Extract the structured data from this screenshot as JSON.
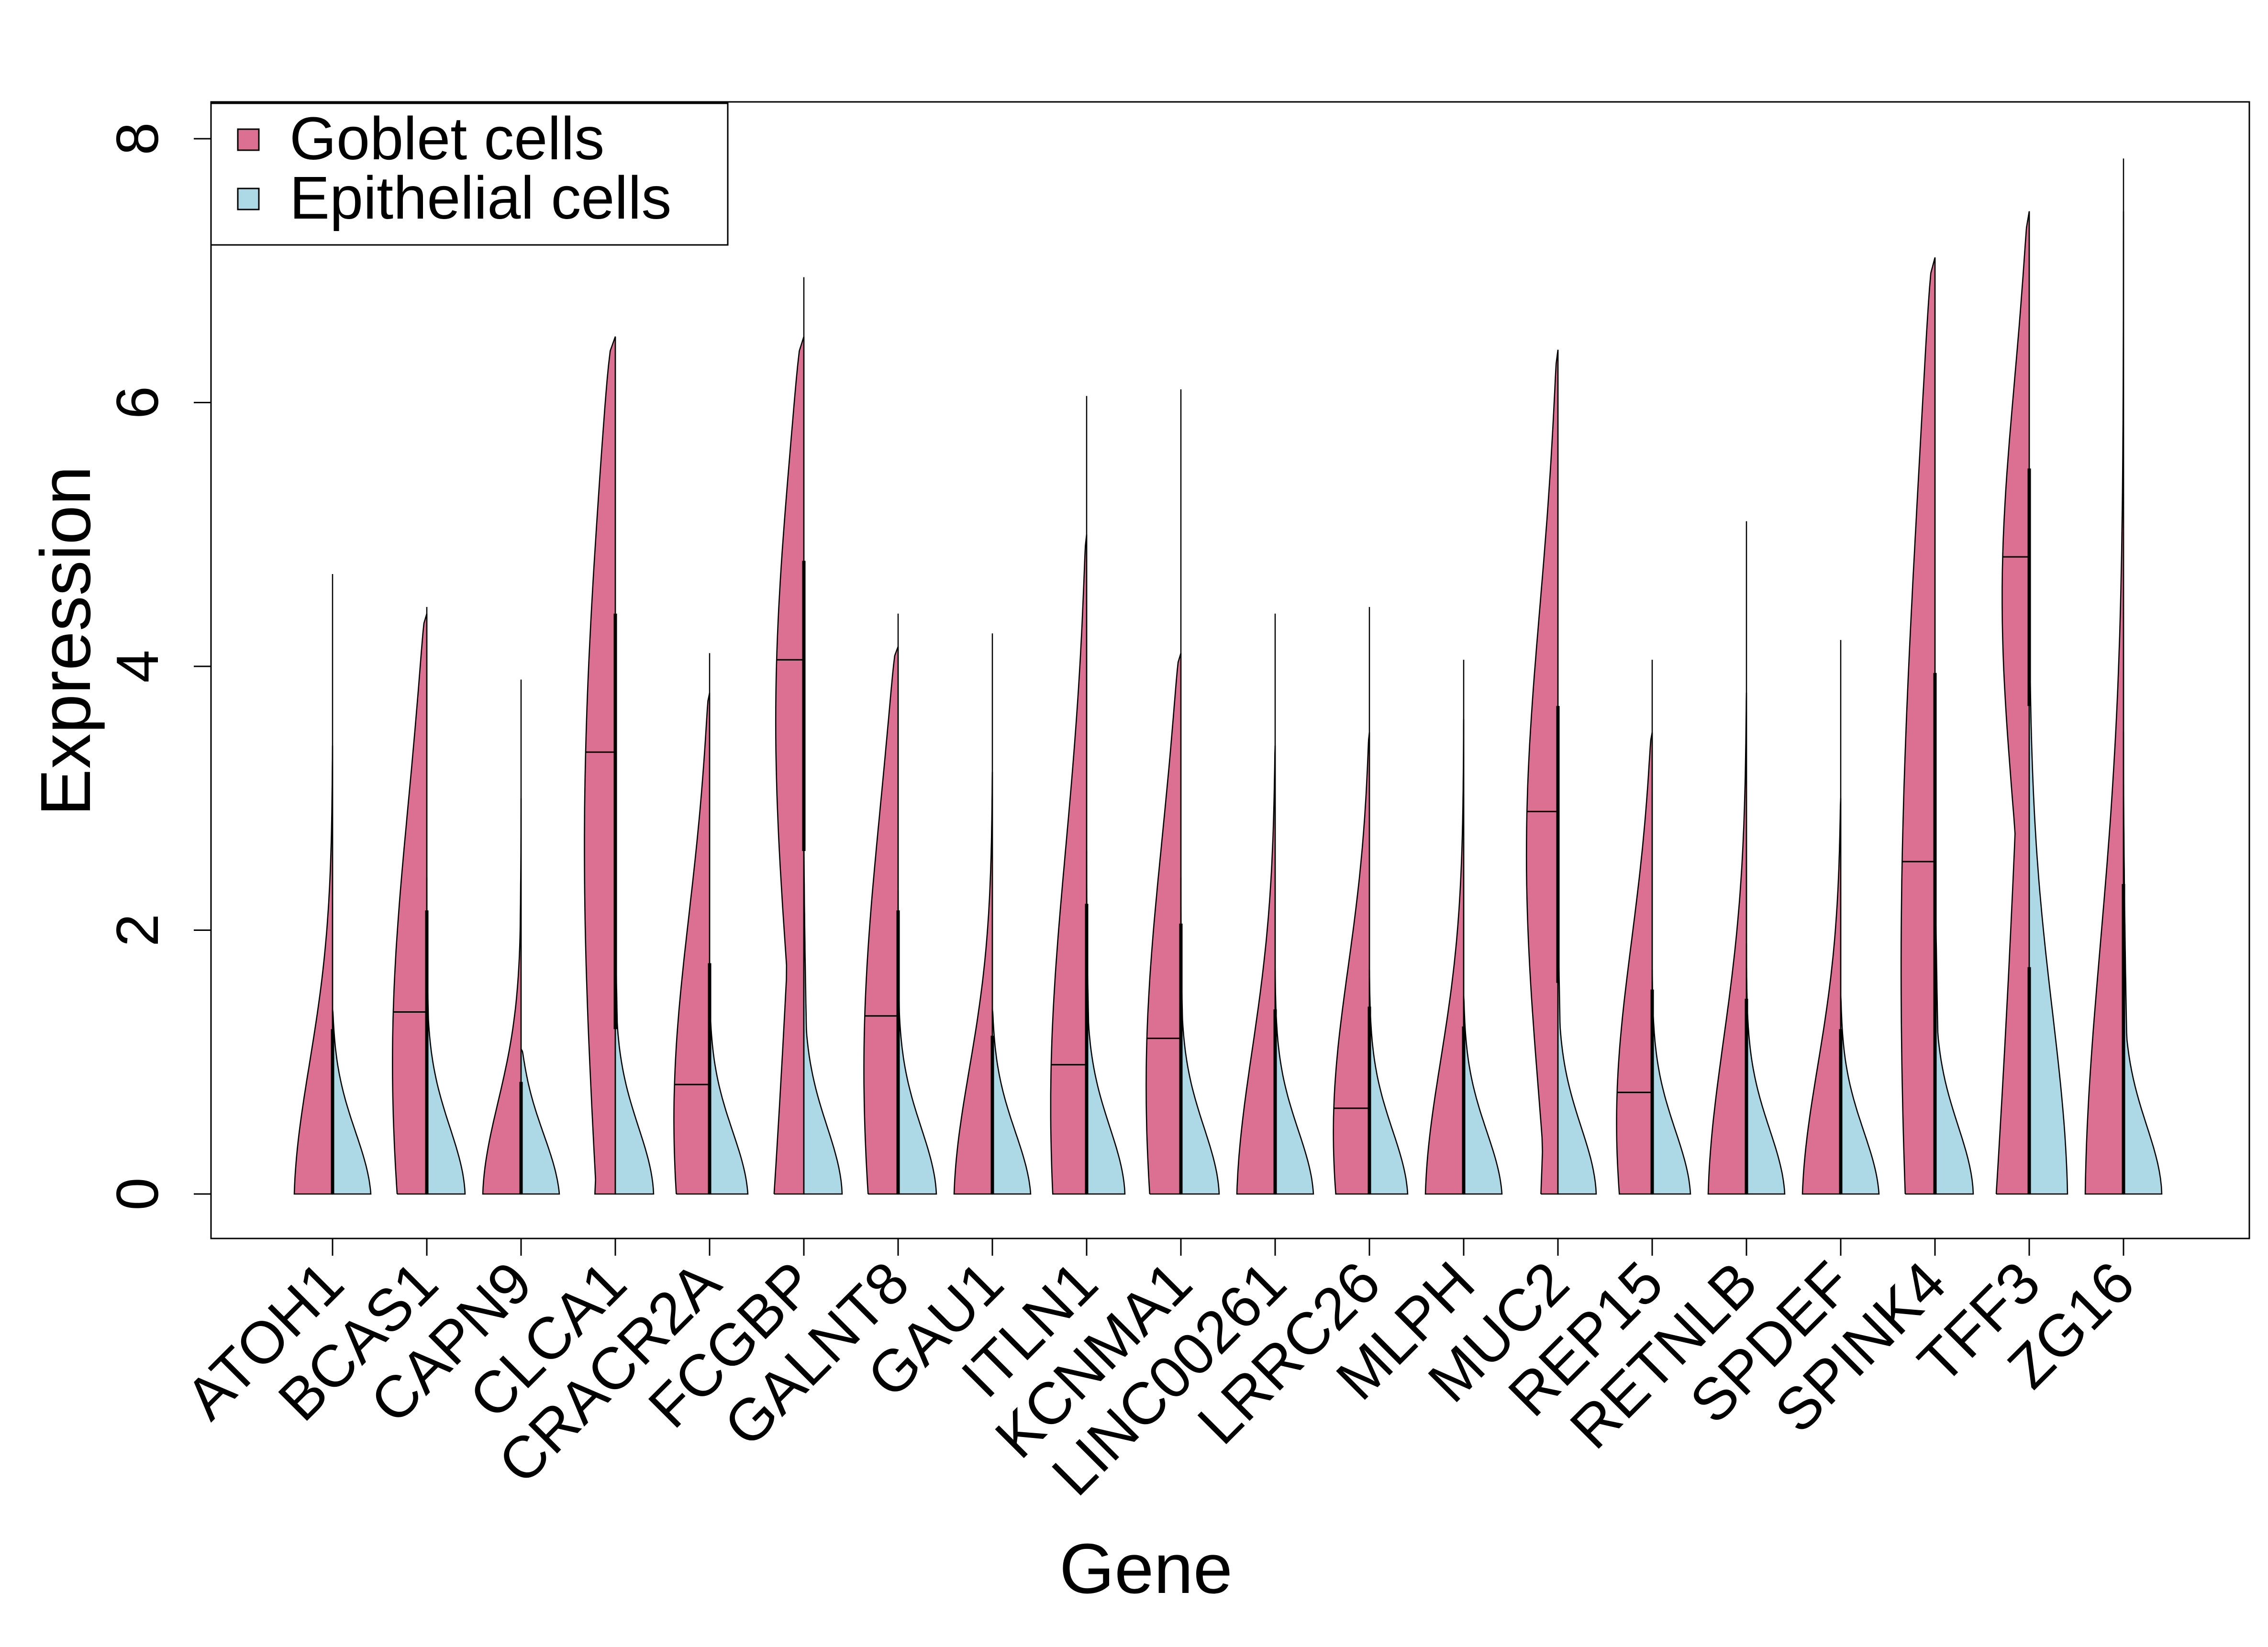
{
  "chart_data": {
    "type": "split-violin",
    "xlabel": "Gene",
    "ylabel": "Expression",
    "ylim": [
      -0.25,
      8.3
    ],
    "yticks": [
      0,
      2,
      4,
      6,
      8
    ],
    "legend": {
      "position": "top-left",
      "entries": [
        {
          "name": "Goblet cells",
          "color": "#DB7093"
        },
        {
          "name": "Epithelial cells",
          "color": "#ADD8E6"
        }
      ]
    },
    "genes": [
      {
        "gene": "ATOH1",
        "goblet": {
          "max": 3.4,
          "median": 0.0,
          "q1": 0.0,
          "q3": 1.25,
          "whisker": 4.7
        },
        "epithelial": {
          "max": 1.4,
          "median": 0.0,
          "q1": 0.0,
          "q3": 0.0
        }
      },
      {
        "gene": "BCAS1",
        "goblet": {
          "max": 4.4,
          "median": 1.38,
          "q1": 0.0,
          "q3": 2.15,
          "whisker": 4.45
        },
        "epithelial": {
          "max": 2.4,
          "median": 0.0,
          "q1": 0.0,
          "q3": 0.0
        }
      },
      {
        "gene": "CAPN9",
        "goblet": {
          "max": 3.0,
          "median": 0.0,
          "q1": 0.0,
          "q3": 0.85,
          "whisker": 3.9
        },
        "epithelial": {
          "max": 1.1,
          "median": 0.0,
          "q1": 0.0,
          "q3": 0.0
        }
      },
      {
        "gene": "CLCA1",
        "goblet": {
          "max": 6.5,
          "median": 3.35,
          "q1": 1.25,
          "q3": 4.4,
          "whisker": 6.5
        },
        "epithelial": {
          "max": 2.6,
          "median": 0.0,
          "q1": 0.0,
          "q3": 0.0
        }
      },
      {
        "gene": "CRACR2A",
        "goblet": {
          "max": 3.8,
          "median": 0.83,
          "q1": 0.0,
          "q3": 1.75,
          "whisker": 4.1
        },
        "epithelial": {
          "max": 1.5,
          "median": 0.0,
          "q1": 0.0,
          "q3": 0.0
        }
      },
      {
        "gene": "FCGBP",
        "goblet": {
          "max": 6.5,
          "median": 4.05,
          "q1": 2.6,
          "q3": 4.8,
          "whisker": 6.95
        },
        "epithelial": {
          "max": 3.0,
          "median": 0.0,
          "q1": 0.0,
          "q3": 0.0
        }
      },
      {
        "gene": "GALNT8",
        "goblet": {
          "max": 4.15,
          "median": 1.35,
          "q1": 0.0,
          "q3": 2.15,
          "whisker": 4.4
        },
        "epithelial": {
          "max": 2.3,
          "median": 0.0,
          "q1": 0.0,
          "q3": 0.0
        }
      },
      {
        "gene": "GAU1",
        "goblet": {
          "max": 3.2,
          "median": 0.0,
          "q1": 0.0,
          "q3": 1.2,
          "whisker": 4.25
        },
        "epithelial": {
          "max": 1.4,
          "median": 0.0,
          "q1": 0.0,
          "q3": 0.0
        }
      },
      {
        "gene": "ITLN1",
        "goblet": {
          "max": 5.0,
          "median": 0.98,
          "q1": 0.0,
          "q3": 2.2,
          "whisker": 6.05
        },
        "epithelial": {
          "max": 2.6,
          "median": 0.0,
          "q1": 0.0,
          "q3": 0.0
        }
      },
      {
        "gene": "KCNMA1",
        "goblet": {
          "max": 4.1,
          "median": 1.18,
          "q1": 0.0,
          "q3": 2.05,
          "whisker": 6.1
        },
        "epithelial": {
          "max": 2.4,
          "median": 0.0,
          "q1": 0.0,
          "q3": 0.0
        }
      },
      {
        "gene": "LINC00261",
        "goblet": {
          "max": 3.4,
          "median": 0.0,
          "q1": 0.0,
          "q3": 1.4,
          "whisker": 4.4
        },
        "epithelial": {
          "max": 1.7,
          "median": 0.0,
          "q1": 0.0,
          "q3": 0.0
        }
      },
      {
        "gene": "LRRC26",
        "goblet": {
          "max": 3.5,
          "median": 0.65,
          "q1": 0.0,
          "q3": 1.42,
          "whisker": 4.45
        },
        "epithelial": {
          "max": 1.7,
          "median": 0.0,
          "q1": 0.0,
          "q3": 0.0
        }
      },
      {
        "gene": "MLPH",
        "goblet": {
          "max": 3.6,
          "median": 0.0,
          "q1": 0.0,
          "q3": 1.27,
          "whisker": 4.05
        },
        "epithelial": {
          "max": 1.5,
          "median": 0.0,
          "q1": 0.0,
          "q3": 0.0
        }
      },
      {
        "gene": "MUC2",
        "goblet": {
          "max": 6.4,
          "median": 2.9,
          "q1": 1.6,
          "q3": 3.7,
          "whisker": 6.4
        },
        "epithelial": {
          "max": 2.7,
          "median": 0.0,
          "q1": 0.0,
          "q3": 0.0
        }
      },
      {
        "gene": "REP15",
        "goblet": {
          "max": 3.5,
          "median": 0.77,
          "q1": 0.0,
          "q3": 1.55,
          "whisker": 4.05
        },
        "epithelial": {
          "max": 1.7,
          "median": 0.0,
          "q1": 0.0,
          "q3": 0.0
        }
      },
      {
        "gene": "RETNLB",
        "goblet": {
          "max": 3.8,
          "median": 0.0,
          "q1": 0.0,
          "q3": 1.48,
          "whisker": 5.1
        },
        "epithelial": {
          "max": 1.9,
          "median": 0.0,
          "q1": 0.0,
          "q3": 0.0
        }
      },
      {
        "gene": "SPDEF",
        "goblet": {
          "max": 3.0,
          "median": 0.0,
          "q1": 0.0,
          "q3": 1.25,
          "whisker": 4.2
        },
        "epithelial": {
          "max": 1.5,
          "median": 0.0,
          "q1": 0.0,
          "q3": 0.0
        }
      },
      {
        "gene": "SPINK4",
        "goblet": {
          "max": 7.1,
          "median": 2.52,
          "q1": 0.0,
          "q3": 3.95,
          "whisker": 7.1
        },
        "epithelial": {
          "max": 3.2,
          "median": 0.0,
          "q1": 0.0,
          "q3": 0.0
        }
      },
      {
        "gene": "TFF3",
        "goblet": {
          "max": 7.45,
          "median": 4.83,
          "q1": 3.7,
          "q3": 5.5,
          "whisker": 7.45
        },
        "epithelial": {
          "max": 5.5,
          "median": 0.0,
          "q1": 0.0,
          "q3": 1.72
        }
      },
      {
        "gene": "ZG16",
        "goblet": {
          "max": 7.45,
          "median": 0.0,
          "q1": 0.0,
          "q3": 2.35,
          "whisker": 7.85
        },
        "epithelial": {
          "max": 3.5,
          "median": 0.0,
          "q1": 0.0,
          "q3": 0.0
        }
      }
    ]
  }
}
